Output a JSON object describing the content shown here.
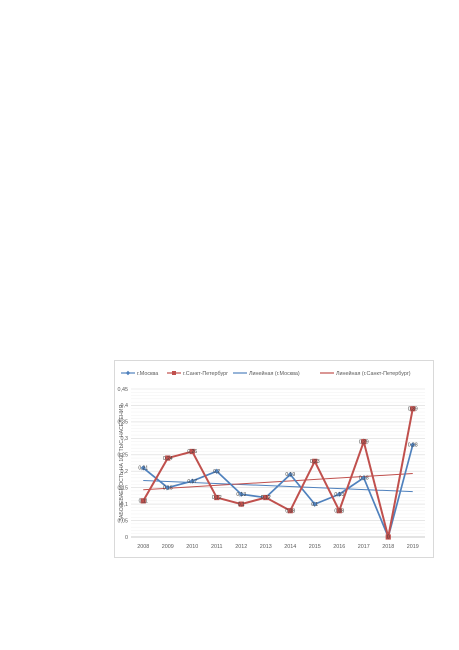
{
  "chart_data": {
    "type": "line",
    "categories": [
      "2008",
      "2009",
      "2010",
      "2011",
      "2012",
      "2013",
      "2014",
      "2015",
      "2016",
      "2017",
      "2018",
      "2019"
    ],
    "ylabel": "ЗАБОЛЕВАЕМОСТЬ НА 100 ТЫС. НАСЕЛЕНИЯ",
    "ylim": [
      0,
      0.45
    ],
    "yticks": [
      "0",
      "0,05",
      "0,1",
      "0,15",
      "0,2",
      "0,25",
      "0,3",
      "0,35",
      "0,4",
      "0,45"
    ],
    "grid": true,
    "legend_position": "top",
    "series": [
      {
        "name": "г.Москва",
        "color": "#4f81bd",
        "marker": "diamond",
        "values": [
          0.21,
          0.15,
          0.17,
          0.2,
          0.13,
          0.12,
          0.19,
          0.1,
          0.13,
          0.18,
          0,
          0.28
        ],
        "labels": [
          "0,21",
          "0,15",
          "0,17",
          "0,2",
          "0,13",
          "0,12",
          "0,19",
          "0,1",
          "0,13",
          "0,18",
          "0",
          "0,28"
        ]
      },
      {
        "name": "г.Санкт-Петербург",
        "color": "#c0504d",
        "marker": "square",
        "values": [
          0.11,
          0.24,
          0.26,
          0.12,
          0.1,
          0.12,
          0.08,
          0.23,
          0.08,
          0.29,
          0,
          0.39
        ],
        "labels": [
          "0,11",
          "0,24",
          "0,26",
          "0,12",
          "0,1",
          "0,12",
          "0,08",
          "0,23",
          "0,08",
          "0,29",
          "0",
          "0,39"
        ]
      }
    ],
    "trendlines": [
      {
        "name": "Линейная (г.Москва)",
        "color": "#4f81bd",
        "of": 0
      },
      {
        "name": "Линейная (г.Санкт-Петербург)",
        "color": "#c0504d",
        "of": 1
      }
    ]
  }
}
